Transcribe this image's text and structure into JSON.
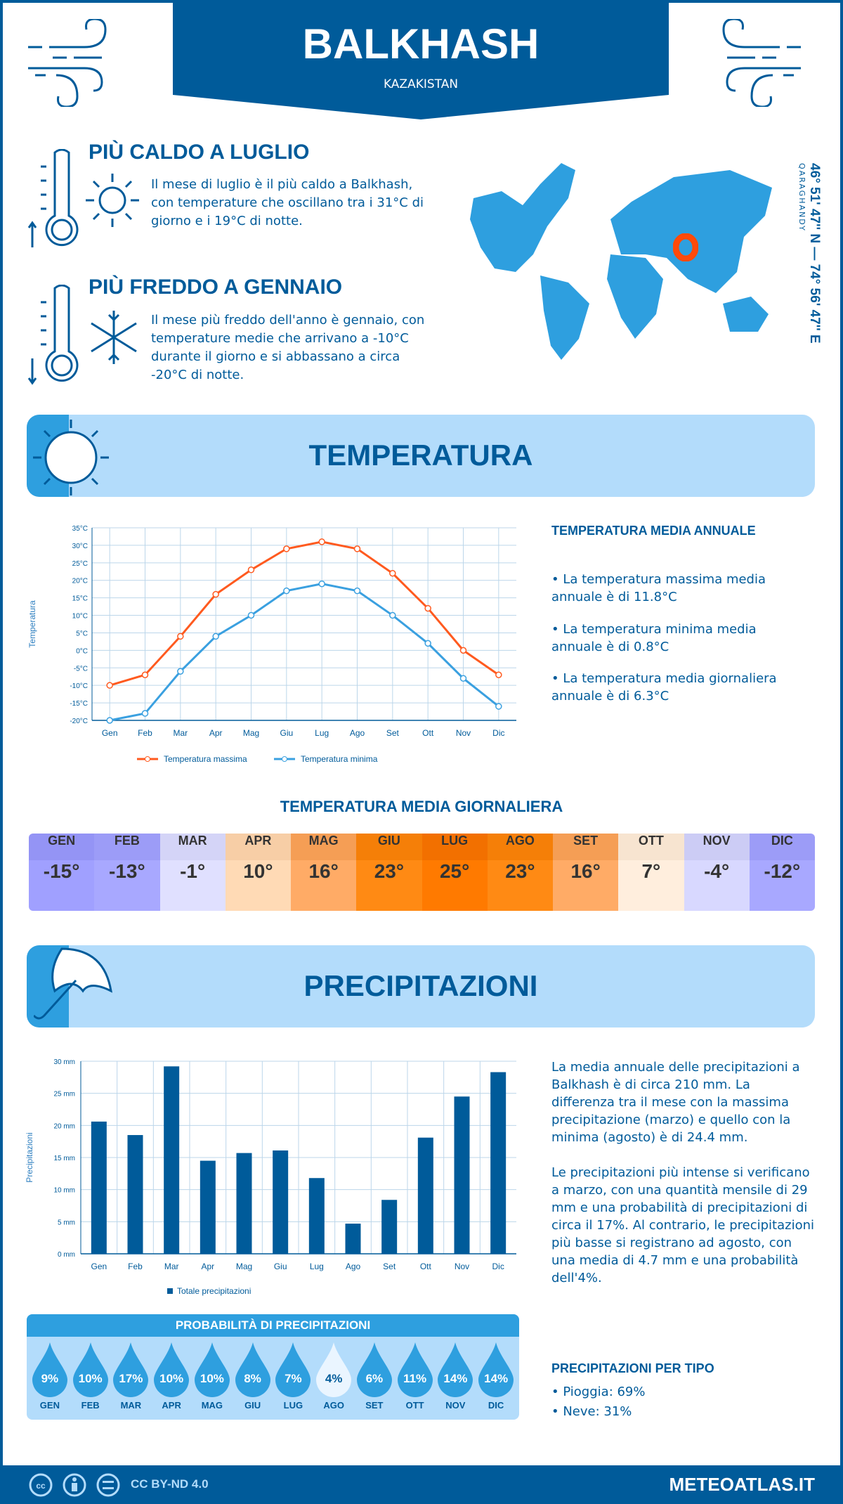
{
  "header": {
    "city": "BALKHASH",
    "country": "KAZAKISTAN"
  },
  "hottest": {
    "title": "PIÙ CALDO A LUGLIO",
    "text": "Il mese di luglio è il più caldo a Balkhash, con temperature che oscillano tra i 31°C di giorno e i 19°C di notte."
  },
  "coldest": {
    "title": "PIÙ FREDDO A GENNAIO",
    "text": "Il mese più freddo dell'anno è gennaio, con temperature medie che arrivano a -10°C durante il giorno e si abbassano a circa -20°C di notte."
  },
  "location": {
    "coords": "46° 51' 47'' N — 74° 56' 47'' E",
    "region": "QARAGHANDY",
    "marker_color": "#ff4a0a"
  },
  "temperature": {
    "banner": "TEMPERATURA",
    "side_title": "TEMPERATURA MEDIA ANNUALE",
    "bullets": [
      "• La temperatura massima media annuale è di 11.8°C",
      "• La temperatura minima media annuale è di 0.8°C",
      "• La temperatura media giornaliera annuale è di 6.3°C"
    ],
    "daily_title": "TEMPERATURA MEDIA GIORNALIERA",
    "daily": [
      {
        "m": "GEN",
        "v": "-15°",
        "bg": "#a0a0ff",
        "hbg": "#9494f5"
      },
      {
        "m": "FEB",
        "v": "-13°",
        "bg": "#a8a8ff",
        "hbg": "#9c9cf7"
      },
      {
        "m": "MAR",
        "v": "-1°",
        "bg": "#e0e0ff",
        "hbg": "#d4d4f7"
      },
      {
        "m": "APR",
        "v": "10°",
        "bg": "#ffdab5",
        "hbg": "#f7cea6"
      },
      {
        "m": "MAG",
        "v": "16°",
        "bg": "#ffab66",
        "hbg": "#f59e55"
      },
      {
        "m": "GIU",
        "v": "23°",
        "bg": "#ff8a14",
        "hbg": "#f57f08"
      },
      {
        "m": "LUG",
        "v": "25°",
        "bg": "#ff7a00",
        "hbg": "#f27000"
      },
      {
        "m": "AGO",
        "v": "23°",
        "bg": "#ff8a14",
        "hbg": "#f57f08"
      },
      {
        "m": "SET",
        "v": "16°",
        "bg": "#ffab66",
        "hbg": "#f59e55"
      },
      {
        "m": "OTT",
        "v": "7°",
        "bg": "#ffeedd",
        "hbg": "#f7e4d0"
      },
      {
        "m": "NOV",
        "v": "-4°",
        "bg": "#d8d8ff",
        "hbg": "#ccccf5"
      },
      {
        "m": "DIC",
        "v": "-12°",
        "bg": "#a8a8ff",
        "hbg": "#9c9cf7"
      }
    ]
  },
  "precipitation": {
    "banner": "PRECIPITAZIONI",
    "paragraphs": [
      "La media annuale delle precipitazioni a Balkhash è di circa 210 mm. La differenza tra il mese con la massima precipitazione (marzo) e quello con la minima (agosto) è di 24.4 mm.",
      "Le precipitazioni più intense si verificano a marzo, con una quantità mensile di 29 mm e una probabilità di precipitazioni di circa il 17%. Al contrario, le precipitazioni più basse si registrano ad agosto, con una media di 4.7 mm e una probabilità dell'4%."
    ],
    "prob_title": "PROBABILITÀ DI PRECIPITAZIONI",
    "prob": [
      {
        "m": "GEN",
        "p": "9%"
      },
      {
        "m": "FEB",
        "p": "10%"
      },
      {
        "m": "MAR",
        "p": "17%"
      },
      {
        "m": "APR",
        "p": "10%"
      },
      {
        "m": "MAG",
        "p": "10%"
      },
      {
        "m": "GIU",
        "p": "8%"
      },
      {
        "m": "LUG",
        "p": "7%"
      },
      {
        "m": "AGO",
        "p": "4%"
      },
      {
        "m": "SET",
        "p": "6%"
      },
      {
        "m": "OTT",
        "p": "11%"
      },
      {
        "m": "NOV",
        "p": "14%"
      },
      {
        "m": "DIC",
        "p": "14%"
      }
    ],
    "type_title": "PRECIPITAZIONI PER TIPO",
    "types": [
      "• Pioggia: 69%",
      "• Neve: 31%"
    ]
  },
  "footer": {
    "license": "CC BY-ND 4.0",
    "site": "METEOATLAS.IT"
  },
  "colors": {
    "dark": "#005b9a",
    "light": "#2e9fdf",
    "banner": "#b3dcfb",
    "max": "#ff5a1f",
    "min": "#3aa0e0"
  },
  "chart_data": [
    {
      "type": "line",
      "categories": [
        "Gen",
        "Feb",
        "Mar",
        "Apr",
        "Mag",
        "Giu",
        "Lug",
        "Ago",
        "Set",
        "Ott",
        "Nov",
        "Dic"
      ],
      "series": [
        {
          "name": "Temperatura massima",
          "values": [
            -10,
            -7,
            4,
            16,
            23,
            29,
            31,
            29,
            22,
            12,
            0,
            -7
          ]
        },
        {
          "name": "Temperatura minima",
          "values": [
            -20,
            -18,
            -6,
            4,
            10,
            17,
            19,
            17,
            10,
            2,
            -8,
            -16
          ]
        }
      ],
      "ylabel": "Temperatura",
      "ylim": [
        -20,
        35
      ],
      "yticks": [
        "-20°C",
        "-15°C",
        "-10°C",
        "-5°C",
        "0°C",
        "5°C",
        "10°C",
        "15°C",
        "20°C",
        "25°C",
        "30°C",
        "35°C"
      ],
      "grid": true,
      "legend": "bottom"
    },
    {
      "type": "bar",
      "categories": [
        "Gen",
        "Feb",
        "Mar",
        "Apr",
        "Mag",
        "Giu",
        "Lug",
        "Ago",
        "Set",
        "Ott",
        "Nov",
        "Dic"
      ],
      "series": [
        {
          "name": "Totale precipitazioni",
          "values": [
            20.6,
            18.5,
            29.2,
            14.5,
            15.7,
            16.1,
            11.8,
            4.7,
            8.4,
            18.1,
            24.5,
            28.3
          ]
        }
      ],
      "ylabel": "Precipitazioni",
      "ylim": [
        0,
        30
      ],
      "yticks": [
        "0 mm",
        "5 mm",
        "10 mm",
        "15 mm",
        "20 mm",
        "25 mm",
        "30 mm"
      ],
      "grid": true,
      "legend": "bottom"
    }
  ]
}
